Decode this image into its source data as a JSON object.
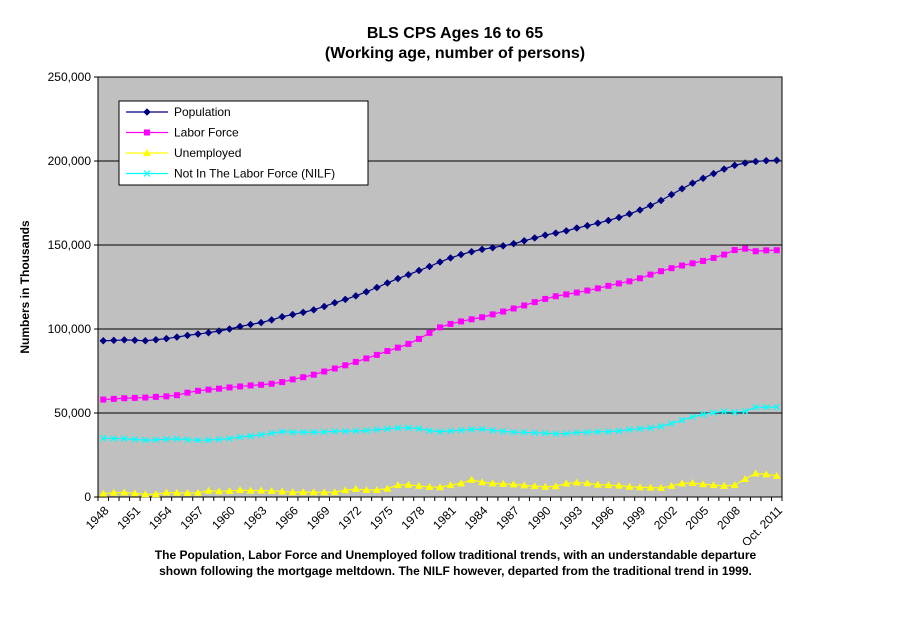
{
  "colors": {
    "plot_background": "#c0c0c0",
    "population": "#000080",
    "labor_force": "#ff00ff",
    "unemployed": "#ffff00",
    "nilf": "#00ffff"
  },
  "caption": {
    "line1": "The Population, Labor Force and Unemployed follow traditional trends, with an understandable departure",
    "line2": "shown following the mortgage meltdown. The NILF however, departed from the traditional trend in 1999."
  },
  "chart_data": {
    "type": "line",
    "title": "BLS CPS Ages 16 to 65",
    "subtitle": "(Working age, number of persons)",
    "xlabel": "",
    "ylabel": "Numbers in Thousands",
    "ylim": [
      0,
      250000
    ],
    "yticks": [
      0,
      50000,
      100000,
      150000,
      200000,
      250000
    ],
    "ytick_labels": [
      "0",
      "50,000",
      "100,000",
      "150,000",
      "200,000",
      "250,000"
    ],
    "grid": true,
    "legend_position": "top-left",
    "x_tick_labels": [
      "1948",
      "1951",
      "1954",
      "1957",
      "1960",
      "1963",
      "1966",
      "1969",
      "1972",
      "1975",
      "1978",
      "1981",
      "1984",
      "1987",
      "1990",
      "1993",
      "1996",
      "1999",
      "2002",
      "2005",
      "2008",
      "Oct. 2011"
    ],
    "x": [
      1948,
      1949,
      1950,
      1951,
      1952,
      1953,
      1954,
      1955,
      1956,
      1957,
      1958,
      1959,
      1960,
      1961,
      1962,
      1963,
      1964,
      1965,
      1966,
      1967,
      1968,
      1969,
      1970,
      1971,
      1972,
      1973,
      1974,
      1975,
      1976,
      1977,
      1978,
      1979,
      1980,
      1981,
      1982,
      1983,
      1984,
      1985,
      1986,
      1987,
      1988,
      1989,
      1990,
      1991,
      1992,
      1993,
      1994,
      1995,
      1996,
      1997,
      1998,
      1999,
      2000,
      2001,
      2002,
      2003,
      2004,
      2005,
      2006,
      2007,
      2008,
      2009,
      2010,
      2011,
      2012
    ],
    "series": [
      {
        "name": "Population",
        "color": "#000080",
        "marker": "diamond",
        "values": [
          93000,
          93200,
          93500,
          93300,
          93000,
          93600,
          94300,
          95200,
          96200,
          97000,
          97800,
          98800,
          100000,
          101500,
          102700,
          103800,
          105400,
          107300,
          108600,
          109900,
          111400,
          113400,
          115600,
          117600,
          119700,
          122100,
          124700,
          127400,
          130000,
          132300,
          134800,
          137200,
          139900,
          142300,
          144300,
          146000,
          147400,
          148400,
          149500,
          150800,
          152500,
          154200,
          155900,
          157100,
          158400,
          160100,
          161500,
          163000,
          164600,
          166400,
          168500,
          170800,
          173500,
          176500,
          180000,
          183500,
          186800,
          189700,
          192500,
          195200,
          197400,
          198800,
          199700,
          200200,
          200400
        ]
      },
      {
        "name": "Labor Force",
        "color": "#ff00ff",
        "marker": "square",
        "values": [
          58000,
          58400,
          58800,
          59000,
          59200,
          59600,
          59900,
          60600,
          62100,
          63200,
          63900,
          64500,
          65200,
          65800,
          66400,
          66800,
          67400,
          68400,
          70000,
          71300,
          72800,
          74700,
          76500,
          78400,
          80400,
          82500,
          84600,
          86900,
          88900,
          91100,
          94100,
          97700,
          101000,
          103000,
          104500,
          105800,
          107000,
          108700,
          110400,
          112200,
          114000,
          116000,
          117900,
          119500,
          120600,
          121700,
          122900,
          124200,
          125700,
          127100,
          128400,
          130200,
          132400,
          134400,
          136200,
          137800,
          139100,
          140500,
          142300,
          144300,
          147000,
          147800,
          146300,
          146800,
          146900
        ]
      },
      {
        "name": "Unemployed",
        "color": "#ffff00",
        "marker": "triangle",
        "values": [
          2000,
          2500,
          2700,
          2200,
          1600,
          1600,
          2700,
          2500,
          2400,
          2500,
          3700,
          3400,
          3600,
          4100,
          3800,
          3900,
          3600,
          3300,
          2800,
          2900,
          2800,
          2800,
          2900,
          4000,
          4800,
          4200,
          4200,
          5000,
          7100,
          7300,
          6600,
          6000,
          5800,
          7100,
          8100,
          10300,
          8800,
          8100,
          7800,
          7500,
          6900,
          6500,
          6100,
          6400,
          8000,
          8600,
          8200,
          7400,
          7100,
          6800,
          6100,
          5800,
          5600,
          5400,
          6600,
          8100,
          8300,
          7600,
          7100,
          6600,
          7100,
          10700,
          14000,
          13500,
          12600
        ]
      },
      {
        "name": "Not In The Labor Force (NILF)",
        "color": "#00ffff",
        "marker": "x",
        "values": [
          35000,
          34800,
          34700,
          34300,
          33800,
          34000,
          34400,
          34600,
          34100,
          33800,
          33900,
          34300,
          34800,
          35700,
          36300,
          37000,
          38000,
          38900,
          38600,
          38600,
          38600,
          38700,
          39100,
          39200,
          39300,
          39600,
          40100,
          40500,
          41100,
          41200,
          40700,
          39500,
          38900,
          39300,
          39800,
          40200,
          40400,
          39700,
          39100,
          38600,
          38500,
          38200,
          38000,
          37600,
          37800,
          38400,
          38600,
          38800,
          38900,
          39300,
          40100,
          40600,
          41100,
          42100,
          43800,
          45700,
          47700,
          49200,
          50200,
          50900,
          50400,
          51000,
          53400,
          53400,
          53500
        ]
      }
    ]
  }
}
